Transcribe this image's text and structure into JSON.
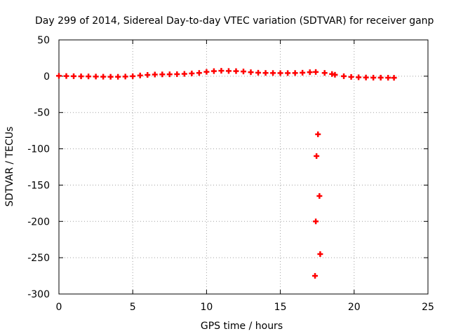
{
  "chart_data": {
    "type": "scatter",
    "title": "Day 299 of 2014, Sidereal Day-to-day VTEC variation (SDTVAR) for receiver ganp",
    "xlabel": "GPS time / hours",
    "ylabel": "SDTVAR / TECUs",
    "xlim": [
      0,
      25
    ],
    "ylim": [
      -300,
      50
    ],
    "xticks": [
      0,
      5,
      10,
      15,
      20,
      25
    ],
    "yticks": [
      50,
      0,
      -50,
      -100,
      -150,
      -200,
      -250,
      -300
    ],
    "grid": true,
    "marker_color": "#ff0000",
    "marker": "plus",
    "series": [
      {
        "name": "SDTVAR",
        "points": [
          [
            0.0,
            0.5
          ],
          [
            0.5,
            0.2
          ],
          [
            1.0,
            0.0
          ],
          [
            1.5,
            -0.2
          ],
          [
            2.0,
            -0.3
          ],
          [
            2.5,
            -0.5
          ],
          [
            3.0,
            -0.7
          ],
          [
            3.5,
            -0.8
          ],
          [
            4.0,
            -0.8
          ],
          [
            4.5,
            -0.5
          ],
          [
            5.0,
            0.0
          ],
          [
            5.5,
            1.0
          ],
          [
            6.0,
            1.8
          ],
          [
            6.5,
            2.3
          ],
          [
            7.0,
            2.5
          ],
          [
            7.5,
            2.6
          ],
          [
            8.0,
            2.8
          ],
          [
            8.5,
            3.2
          ],
          [
            9.0,
            3.8
          ],
          [
            9.5,
            4.5
          ],
          [
            10.0,
            6.0
          ],
          [
            10.5,
            7.0
          ],
          [
            11.0,
            7.5
          ],
          [
            11.5,
            7.2
          ],
          [
            12.0,
            7.0
          ],
          [
            12.5,
            6.5
          ],
          [
            13.0,
            5.5
          ],
          [
            13.5,
            4.8
          ],
          [
            14.0,
            4.5
          ],
          [
            14.5,
            4.4
          ],
          [
            15.0,
            4.3
          ],
          [
            15.5,
            4.3
          ],
          [
            16.0,
            4.4
          ],
          [
            16.5,
            4.8
          ],
          [
            17.0,
            5.5
          ],
          [
            17.4,
            5.8
          ],
          [
            17.45,
            -110
          ],
          [
            17.55,
            -80
          ],
          [
            17.4,
            -200
          ],
          [
            17.65,
            -165
          ],
          [
            17.35,
            -275
          ],
          [
            17.7,
            -245
          ],
          [
            18.0,
            4.5
          ],
          [
            18.5,
            3.0
          ],
          [
            18.7,
            2.0
          ],
          [
            19.3,
            0.0
          ],
          [
            19.8,
            -1.0
          ],
          [
            20.3,
            -1.5
          ],
          [
            20.8,
            -1.8
          ],
          [
            21.3,
            -2.0
          ],
          [
            21.8,
            -2.0
          ],
          [
            22.3,
            -2.1
          ],
          [
            22.7,
            -2.2
          ]
        ]
      }
    ]
  }
}
